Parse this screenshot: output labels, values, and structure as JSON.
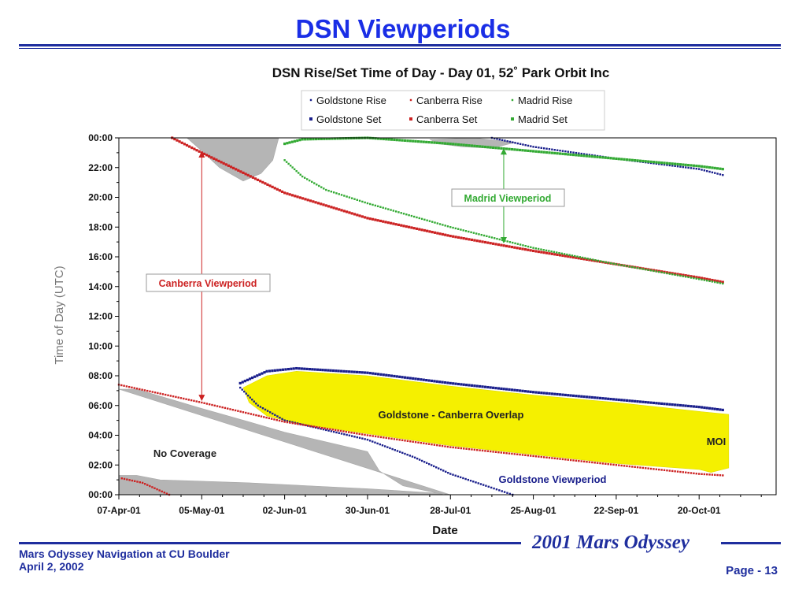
{
  "slide": {
    "title": "DSN Viewperiods",
    "footer_line1": "Mars Odyssey Navigation at CU Boulder",
    "footer_line2": "April 2, 2002",
    "brand": "2001 Mars Odyssey",
    "page": "Page - 13"
  },
  "colors": {
    "slide_title": "#1a2ee6",
    "footer": "#1f2e9e",
    "goldstone": "#1a1f8c",
    "canberra": "#cc2222",
    "madrid": "#33aa33",
    "no_coverage": "#b5b5b5",
    "overlap": "#f5f000"
  },
  "chart_data": {
    "type": "scatter",
    "title": "DSN Rise/Set Time of Day - Day 01, 52˚ Park Orbit Inc",
    "xlabel": "Date",
    "ylabel": "Time of Day (UTC)",
    "x_tick_labels": [
      "07-Apr-01",
      "05-May-01",
      "02-Jun-01",
      "30-Jun-01",
      "28-Jul-01",
      "25-Aug-01",
      "22-Sep-01",
      "20-Oct-01"
    ],
    "x_tick_days": [
      0,
      28,
      56,
      84,
      112,
      140,
      168,
      196
    ],
    "x_range_days": [
      0,
      222
    ],
    "y_tick_labels": [
      "00:00",
      "02:00",
      "04:00",
      "06:00",
      "08:00",
      "10:00",
      "12:00",
      "14:00",
      "16:00",
      "18:00",
      "20:00",
      "22:00",
      "00:00"
    ],
    "ylim_hours": [
      0,
      24
    ],
    "legend": {
      "placement": "top",
      "entries": [
        {
          "label": "Goldstone  Rise",
          "series": "goldstone_rise"
        },
        {
          "label": "Canberra  Rise",
          "series": "canberra_rise"
        },
        {
          "label": "Madrid  Rise",
          "series": "madrid_rise"
        },
        {
          "label": "Goldstone  Set",
          "series": "goldstone_set"
        },
        {
          "label": "Canberra  Set",
          "series": "canberra_set"
        },
        {
          "label": "Madrid  Set",
          "series": "madrid_set"
        }
      ]
    },
    "series": [
      {
        "name": "Goldstone  Set",
        "key": "goldstone_set",
        "color": "#1a1f8c",
        "points": [
          [
            41,
            7.5
          ],
          [
            50,
            8.3
          ],
          [
            60,
            8.5
          ],
          [
            84,
            8.2
          ],
          [
            112,
            7.5
          ],
          [
            140,
            6.9
          ],
          [
            168,
            6.4
          ],
          [
            196,
            5.9
          ],
          [
            204,
            5.7
          ]
        ]
      },
      {
        "name": "Goldstone  Rise",
        "key": "goldstone_rise",
        "color": "#1a1f8c",
        "points": [
          [
            41,
            7.2
          ],
          [
            47,
            6.0
          ],
          [
            56,
            5.0
          ],
          [
            84,
            3.7
          ],
          [
            100,
            2.5
          ],
          [
            112,
            1.4
          ],
          [
            124,
            0.6
          ],
          [
            133,
            0
          ]
        ]
      },
      {
        "name": "Goldstone  Rise",
        "key": "goldstone_rise_upper",
        "color": "#1a1f8c",
        "points": [
          [
            126,
            24
          ],
          [
            140,
            23.4
          ],
          [
            168,
            22.6
          ],
          [
            196,
            21.9
          ],
          [
            204,
            21.5
          ]
        ]
      },
      {
        "name": "Canberra  Rise",
        "key": "canberra_rise",
        "color": "#cc2222",
        "points": [
          [
            0,
            7.4
          ],
          [
            28,
            6.2
          ],
          [
            56,
            4.9
          ],
          [
            84,
            4.0
          ],
          [
            112,
            3.2
          ],
          [
            140,
            2.6
          ],
          [
            168,
            2.0
          ],
          [
            196,
            1.4
          ],
          [
            204,
            1.3
          ]
        ]
      },
      {
        "name": "Canberra  Rise",
        "key": "canberra_rise_low",
        "color": "#cc2222",
        "points": [
          [
            1,
            1.1
          ],
          [
            8,
            0.8
          ],
          [
            17,
            0
          ]
        ]
      },
      {
        "name": "Canberra  Set",
        "key": "canberra_set",
        "color": "#cc2222",
        "points": [
          [
            18,
            24
          ],
          [
            28,
            23.0
          ],
          [
            56,
            20.3
          ],
          [
            84,
            18.6
          ],
          [
            112,
            17.4
          ],
          [
            140,
            16.4
          ],
          [
            168,
            15.5
          ],
          [
            196,
            14.6
          ],
          [
            204,
            14.3
          ]
        ]
      },
      {
        "name": "Madrid  Set",
        "key": "madrid_set",
        "color": "#33aa33",
        "points": [
          [
            56,
            23.6
          ],
          [
            62,
            23.9
          ],
          [
            84,
            24.0
          ],
          [
            112,
            23.6
          ],
          [
            140,
            23.1
          ],
          [
            168,
            22.6
          ],
          [
            196,
            22.1
          ],
          [
            204,
            21.9
          ]
        ]
      },
      {
        "name": "Madrid  Rise",
        "key": "madrid_rise",
        "color": "#33aa33",
        "points": [
          [
            56,
            22.5
          ],
          [
            62,
            21.4
          ],
          [
            70,
            20.5
          ],
          [
            84,
            19.6
          ],
          [
            112,
            18.0
          ],
          [
            140,
            16.6
          ],
          [
            168,
            15.5
          ],
          [
            196,
            14.5
          ],
          [
            204,
            14.2
          ]
        ]
      }
    ],
    "regions": [
      {
        "label": "No Coverage",
        "color": "#b5b5b5",
        "polygon": [
          [
            0,
            1.3
          ],
          [
            6,
            1.3
          ],
          [
            14,
            1.0
          ],
          [
            30,
            0.9
          ],
          [
            44,
            0.8
          ],
          [
            60,
            0.6
          ],
          [
            84,
            0.4
          ],
          [
            108,
            0.1
          ],
          [
            118,
            0
          ],
          [
            0,
            0
          ],
          [
            0,
            7.1
          ],
          [
            6,
            7.1
          ],
          [
            28,
            5.8
          ],
          [
            44,
            4.9
          ],
          [
            56,
            4.2
          ],
          [
            84,
            2.9
          ],
          [
            88,
            1.7
          ],
          [
            96,
            0.5
          ],
          [
            108,
            0.1
          ]
        ],
        "outline": [
          [
            0,
            7.1
          ],
          [
            6,
            7.1
          ],
          [
            28,
            5.8
          ],
          [
            44,
            4.9
          ],
          [
            56,
            4.2
          ],
          [
            84,
            2.9
          ],
          [
            88,
            1.6
          ],
          [
            96,
            0.6
          ],
          [
            110,
            0.0
          ],
          [
            0,
            0.0
          ],
          [
            0,
            1.3
          ],
          [
            6,
            1.3
          ],
          [
            14,
            1.0
          ],
          [
            44,
            0.8
          ],
          [
            84,
            0.4
          ],
          [
            108,
            0.1
          ],
          [
            112,
            0.0
          ]
        ]
      },
      {
        "label": "",
        "color": "#b5b5b5",
        "outline": [
          [
            23,
            24
          ],
          [
            54,
            24
          ],
          [
            52,
            22.5
          ],
          [
            48,
            21.6
          ],
          [
            42,
            21.1
          ],
          [
            34,
            22.0
          ],
          [
            27,
            23.3
          ]
        ]
      },
      {
        "label": "",
        "color": "#b5b5b5",
        "outline": [
          [
            105,
            23.9
          ],
          [
            120,
            24
          ],
          [
            134,
            23.7
          ],
          [
            126,
            23.3
          ],
          [
            116,
            23.4
          ],
          [
            108,
            23.6
          ]
        ]
      },
      {
        "label": "Goldstone - Canberra Overlap",
        "color": "#f5f000",
        "outline": [
          [
            42,
            7.2
          ],
          [
            50,
            8.0
          ],
          [
            60,
            8.3
          ],
          [
            84,
            8.0
          ],
          [
            112,
            7.3
          ],
          [
            140,
            6.7
          ],
          [
            168,
            6.2
          ],
          [
            196,
            5.6
          ],
          [
            206,
            5.4
          ],
          [
            206,
            1.8
          ],
          [
            200,
            1.5
          ],
          [
            196,
            1.7
          ],
          [
            168,
            2.1
          ],
          [
            140,
            2.7
          ],
          [
            112,
            3.3
          ],
          [
            84,
            4.1
          ],
          [
            60,
            4.8
          ],
          [
            50,
            5.3
          ],
          [
            44,
            6.2
          ]
        ]
      }
    ],
    "annotations": [
      {
        "text": "Canberra  Viewperiod",
        "color": "#cc2222",
        "arrow_x_day": 28,
        "arrow_y_hours": [
          23.1,
          6.3
        ]
      },
      {
        "text": "Madrid  Viewperiod",
        "color": "#33aa33",
        "arrow_x_day": 130,
        "arrow_y_hours": [
          23.3,
          16.9
        ]
      },
      {
        "text": "Goldstone  Viewperiod",
        "color": "#1a1f8c"
      },
      {
        "text": "No Coverage",
        "color": "#222222"
      },
      {
        "text": "Goldstone - Canberra Overlap",
        "color": "#222222"
      },
      {
        "text": "MOI",
        "color": "#222222"
      }
    ],
    "grid": false
  }
}
